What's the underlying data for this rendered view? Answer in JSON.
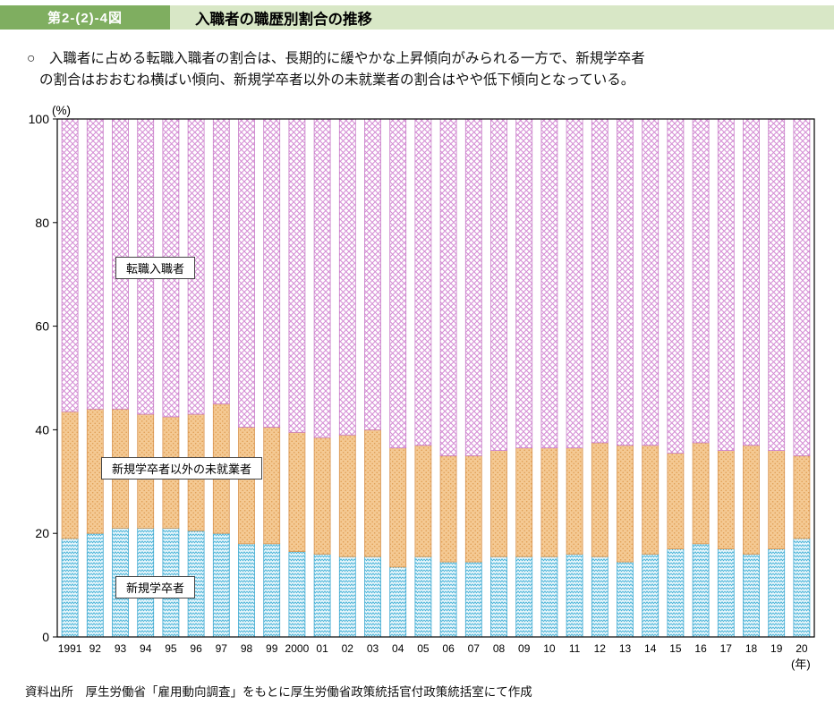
{
  "header": {
    "figure_number": "第2-(2)-4図",
    "title": "入職者の職歴別割合の推移"
  },
  "summary": {
    "lines": [
      "○　入職者に占める転職入職者の割合は、長期的に緩やかな上昇傾向がみられる一方で、新規学卒者",
      "の割合はおおむね横ばい傾向、新規学卒者以外の未就業者の割合はやや低下傾向となっている。"
    ]
  },
  "labels": {
    "jobchanger": "転職入職者",
    "nonemployed": "新規学卒者以外の未就業者",
    "newgrad": "新規学卒者"
  },
  "chart_data": {
    "type": "bar",
    "stacked": true,
    "unit": "%",
    "title": "入職者の職歴別割合の推移",
    "categories": [
      "1991",
      "92",
      "93",
      "94",
      "95",
      "96",
      "97",
      "98",
      "99",
      "2000",
      "01",
      "02",
      "03",
      "04",
      "05",
      "06",
      "07",
      "08",
      "09",
      "10",
      "11",
      "12",
      "13",
      "14",
      "15",
      "16",
      "17",
      "18",
      "19",
      "20"
    ],
    "series": [
      {
        "name": "新規学卒者",
        "values": [
          19,
          20,
          21,
          21,
          21,
          20.5,
          20,
          18,
          18,
          16.5,
          16,
          15.5,
          15.5,
          13.5,
          15.5,
          14.5,
          14.5,
          15.5,
          15.5,
          15.5,
          16,
          15.5,
          14.5,
          16,
          17,
          18,
          17,
          16,
          17,
          19
        ]
      },
      {
        "name": "新規学卒者以外の未就業者",
        "values": [
          24.5,
          24,
          23,
          22,
          21.5,
          22.5,
          25,
          22.5,
          22.5,
          23,
          22.5,
          23.5,
          24.5,
          23,
          21.5,
          20.5,
          20.5,
          20.5,
          21,
          21,
          20.5,
          22,
          22.5,
          21,
          18.5,
          19.5,
          19,
          21,
          19,
          16
        ]
      },
      {
        "name": "転職入職者",
        "values": [
          56.5,
          56,
          56,
          57,
          57.5,
          57,
          55,
          59.5,
          59.5,
          60.5,
          61.5,
          61,
          60,
          63.5,
          63,
          65,
          65,
          64,
          63.5,
          63.5,
          63.5,
          62.5,
          63,
          63,
          64.5,
          62.5,
          64,
          63,
          64,
          65
        ]
      }
    ],
    "ylim": [
      0,
      100
    ],
    "yticks": [
      0,
      20,
      40,
      60,
      80,
      100
    ],
    "ylabel": "(%)",
    "xlabel": "(年)",
    "legend_position": "inside",
    "grid": false
  },
  "colors": {
    "figure_badge_bg": "#7fae60",
    "figure_strip_bg": "#d8e7c6",
    "newgrad_fill": "#eef8fc",
    "newgrad_line": "#45b2d8",
    "nonemployed_fill": "#f4c993",
    "nonemployed_dot": "#de9a4d",
    "jobchanger_fill": "#ffffff",
    "jobchanger_hatch": "#d48cd4"
  },
  "footer": {
    "source": "資料出所　厚生労働省「雇用動向調査」をもとに厚生労働省政策統括官付政策統括室にて作成"
  }
}
